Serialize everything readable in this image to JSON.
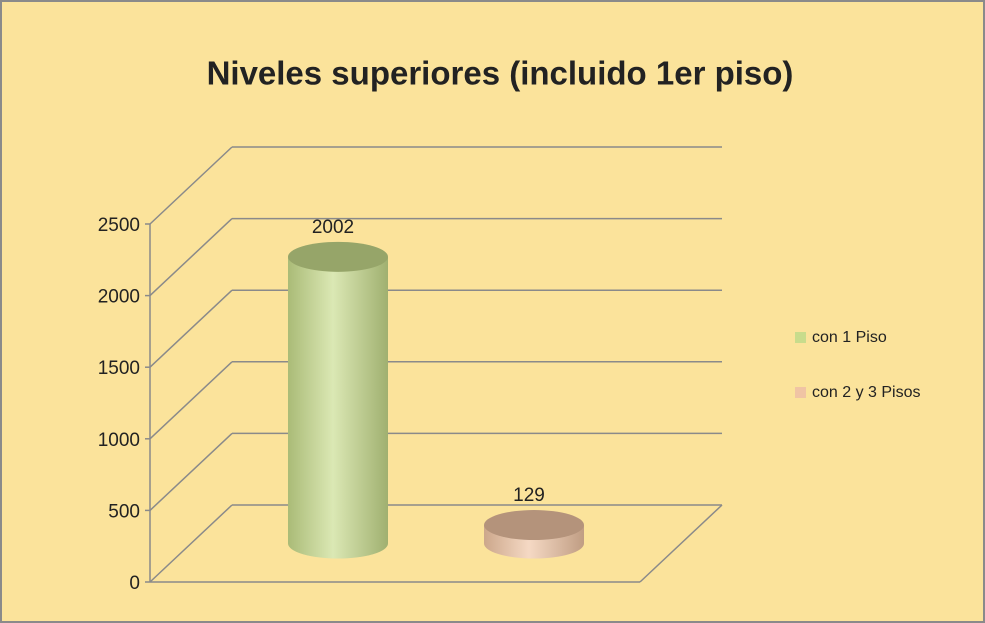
{
  "chart_data": {
    "type": "bar",
    "title": "Niveles superiores (incluido 1er piso)",
    "categories": [
      null
    ],
    "series": [
      {
        "name": "con 1 Piso",
        "color": "#c8dc8c",
        "values": [
          2002
        ]
      },
      {
        "name": "con 2 y 3 Pisos",
        "color": "#f0c4a4",
        "values": [
          129
        ]
      }
    ],
    "ylim": [
      0,
      2500
    ],
    "yticks": [
      0,
      500,
      1000,
      1500,
      2000,
      2500
    ],
    "grid": true,
    "legend": "right",
    "data_labels": true
  }
}
